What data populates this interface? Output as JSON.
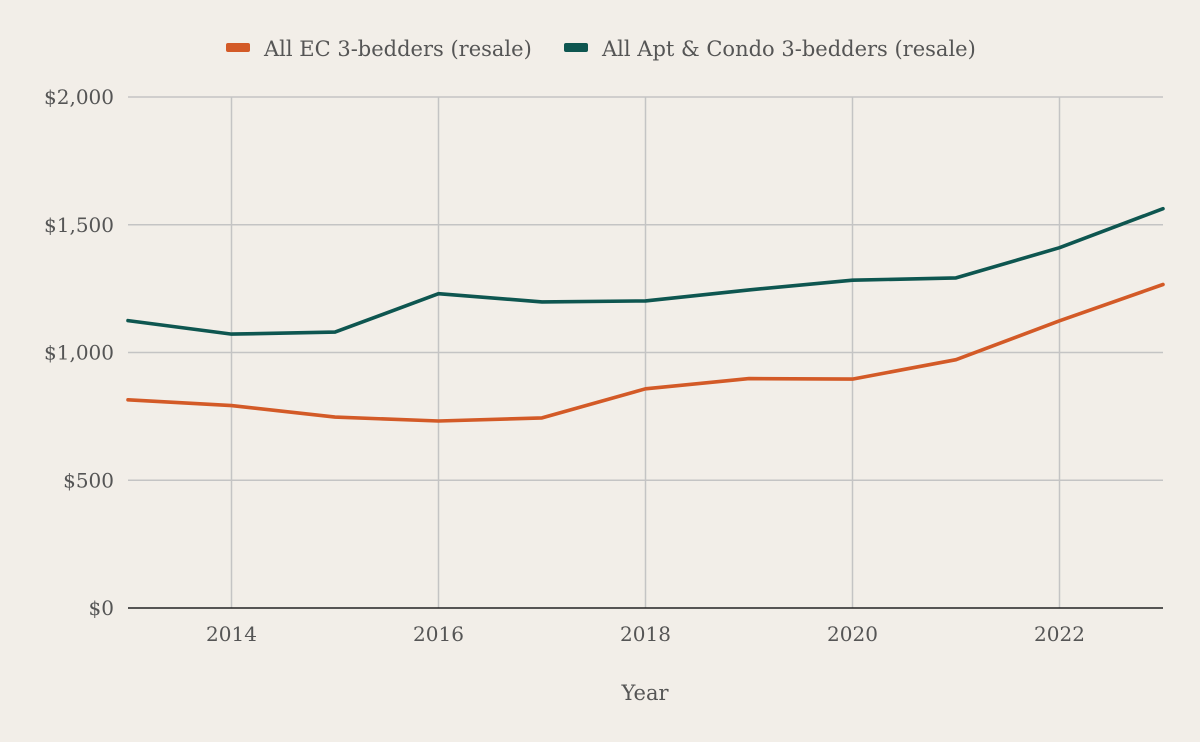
{
  "chart_data": {
    "type": "line",
    "title": "",
    "xlabel": "Year",
    "ylabel": "",
    "x": [
      2013,
      2014,
      2015,
      2016,
      2017,
      2018,
      2019,
      2020,
      2021,
      2022,
      2023
    ],
    "xlim": [
      2013,
      2023
    ],
    "ylim": [
      0,
      2000
    ],
    "xticks": [
      2014,
      2016,
      2018,
      2020,
      2022
    ],
    "xtick_labels": [
      "2014",
      "2016",
      "2018",
      "2020",
      "2022"
    ],
    "yticks": [
      0,
      500,
      1000,
      1500,
      2000
    ],
    "ytick_labels": [
      "$0",
      "$500",
      "$1,000",
      "$1,500",
      "$2,000"
    ],
    "grid": true,
    "legend_position": "top-center",
    "series": [
      {
        "name": "All EC 3-bedders (resale)",
        "color": "#d35a27",
        "values": [
          815,
          792,
          747,
          732,
          744,
          858,
          898,
          896,
          972,
          1124,
          1266
        ]
      },
      {
        "name": "All Apt & Condo 3-bedders (resale)",
        "color": "#0e5650",
        "values": [
          1125,
          1072,
          1080,
          1230,
          1198,
          1202,
          1245,
          1283,
          1292,
          1410,
          1563
        ]
      }
    ]
  }
}
